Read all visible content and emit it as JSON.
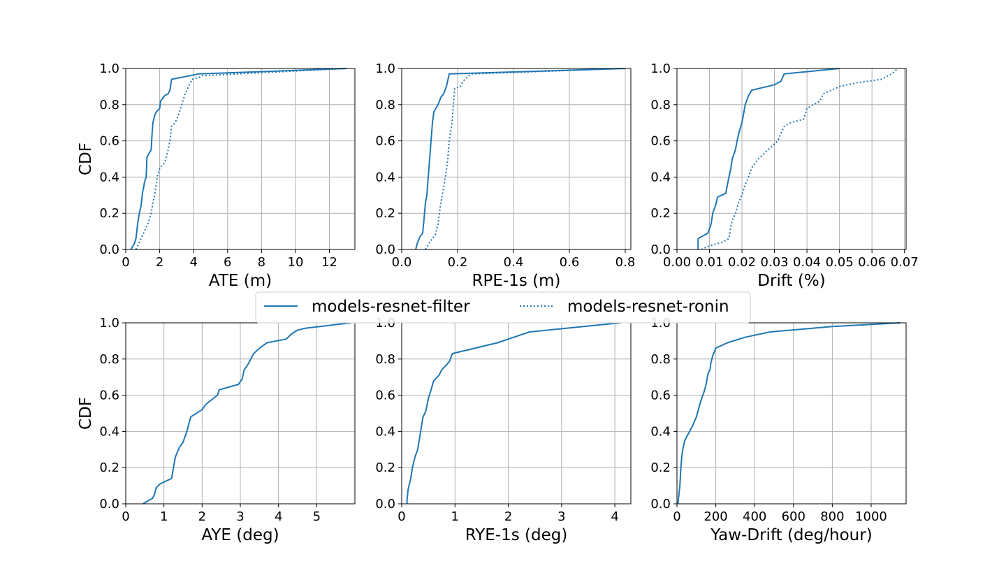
{
  "colors": {
    "series": "#1f77b4",
    "grid": "#b0b0b0"
  },
  "legend": {
    "placement": "center",
    "entries": [
      {
        "label": "models-resnet-filter",
        "style": "solid"
      },
      {
        "label": "models-resnet-ronin",
        "style": "dotted"
      }
    ]
  },
  "chart_data": [
    {
      "type": "line",
      "xlabel": "ATE (m)",
      "ylabel": "CDF",
      "xlim": [
        0,
        13.5
      ],
      "ylim": [
        0,
        1
      ],
      "xticks": [
        0,
        2,
        4,
        6,
        8,
        10,
        12
      ],
      "xtick_labels": [
        "0",
        "2",
        "4",
        "6",
        "8",
        "10",
        "12"
      ],
      "yticks": [
        0,
        0.2,
        0.4,
        0.6,
        0.8,
        1.0
      ],
      "ytick_labels": [
        "0.0",
        "0.2",
        "0.4",
        "0.6",
        "0.8",
        "1.0"
      ],
      "grid": true,
      "series": [
        {
          "name": "models-resnet-filter",
          "style": "solid",
          "x": [
            0.3,
            0.5,
            0.6,
            0.7,
            0.8,
            0.9,
            1.0,
            1.05,
            1.1,
            1.2,
            1.25,
            1.3,
            1.5,
            1.55,
            1.6,
            1.7,
            1.8,
            2.0,
            2.05,
            2.3,
            2.5,
            2.6,
            2.65,
            2.7,
            4.3,
            13.0
          ],
          "y": [
            0.0,
            0.03,
            0.06,
            0.14,
            0.2,
            0.24,
            0.32,
            0.34,
            0.37,
            0.4,
            0.51,
            0.52,
            0.55,
            0.64,
            0.7,
            0.74,
            0.76,
            0.78,
            0.82,
            0.85,
            0.86,
            0.88,
            0.91,
            0.94,
            0.97,
            1.0
          ]
        },
        {
          "name": "models-resnet-ronin",
          "style": "dotted",
          "x": [
            0.6,
            0.9,
            1.1,
            1.3,
            1.5,
            1.6,
            1.7,
            1.8,
            1.85,
            1.95,
            2.0,
            2.3,
            2.5,
            2.6,
            2.65,
            2.7,
            2.9,
            3.1,
            3.3,
            3.5,
            3.9,
            4.3,
            4.5,
            13.0
          ],
          "y": [
            0.0,
            0.06,
            0.1,
            0.14,
            0.2,
            0.26,
            0.3,
            0.36,
            0.4,
            0.43,
            0.45,
            0.48,
            0.55,
            0.6,
            0.64,
            0.68,
            0.7,
            0.74,
            0.8,
            0.86,
            0.94,
            0.95,
            0.96,
            1.0
          ]
        }
      ]
    },
    {
      "type": "line",
      "xlabel": "RPE-1s (m)",
      "ylabel": "",
      "xlim": [
        0,
        0.82
      ],
      "ylim": [
        0,
        1
      ],
      "xticks": [
        0,
        0.2,
        0.4,
        0.6,
        0.8
      ],
      "xtick_labels": [
        "0.0",
        "0.2",
        "0.4",
        "0.6",
        "0.8"
      ],
      "yticks": [
        0,
        0.2,
        0.4,
        0.6,
        0.8,
        1.0
      ],
      "ytick_labels": [
        "0.0",
        "0.2",
        "0.4",
        "0.6",
        "0.8",
        "1.0"
      ],
      "grid": true,
      "series": [
        {
          "name": "models-resnet-filter",
          "style": "solid",
          "x": [
            0.05,
            0.055,
            0.065,
            0.075,
            0.08,
            0.085,
            0.09,
            0.095,
            0.1,
            0.105,
            0.11,
            0.115,
            0.13,
            0.14,
            0.15,
            0.16,
            0.17,
            0.8
          ],
          "y": [
            0.0,
            0.03,
            0.07,
            0.09,
            0.17,
            0.26,
            0.3,
            0.4,
            0.5,
            0.6,
            0.7,
            0.76,
            0.8,
            0.84,
            0.86,
            0.9,
            0.97,
            1.0
          ]
        },
        {
          "name": "models-resnet-ronin",
          "style": "dotted",
          "x": [
            0.085,
            0.1,
            0.12,
            0.13,
            0.135,
            0.14,
            0.15,
            0.16,
            0.165,
            0.17,
            0.175,
            0.18,
            0.185,
            0.19,
            0.21,
            0.22,
            0.24,
            0.25,
            0.8
          ],
          "y": [
            0.0,
            0.04,
            0.08,
            0.14,
            0.2,
            0.26,
            0.34,
            0.44,
            0.5,
            0.6,
            0.65,
            0.7,
            0.8,
            0.89,
            0.9,
            0.93,
            0.96,
            0.97,
            1.0
          ]
        }
      ]
    },
    {
      "type": "line",
      "xlabel": "Drift (%)",
      "ylabel": "",
      "xlim": [
        0,
        0.0705
      ],
      "ylim": [
        0,
        1
      ],
      "xticks": [
        0,
        0.01,
        0.02,
        0.03,
        0.04,
        0.05,
        0.06,
        0.07
      ],
      "xtick_labels": [
        "0.00",
        "0.01",
        "0.02",
        "0.03",
        "0.04",
        "0.05",
        "0.06",
        "0.07"
      ],
      "yticks": [
        0,
        0.2,
        0.4,
        0.6,
        0.8,
        1.0
      ],
      "ytick_labels": [
        "0.0",
        "0.2",
        "0.4",
        "0.6",
        "0.8",
        "1.0"
      ],
      "grid": true,
      "series": [
        {
          "name": "models-resnet-filter",
          "style": "solid",
          "x": [
            0.0065,
            0.0065,
            0.0095,
            0.0105,
            0.011,
            0.012,
            0.0125,
            0.015,
            0.016,
            0.0165,
            0.017,
            0.018,
            0.0185,
            0.019,
            0.02,
            0.0205,
            0.021,
            0.022,
            0.023,
            0.03,
            0.032,
            0.033,
            0.05
          ],
          "y": [
            0.0,
            0.06,
            0.09,
            0.14,
            0.2,
            0.25,
            0.29,
            0.31,
            0.4,
            0.44,
            0.5,
            0.55,
            0.6,
            0.64,
            0.7,
            0.75,
            0.8,
            0.85,
            0.88,
            0.91,
            0.93,
            0.97,
            1.0
          ]
        },
        {
          "name": "models-resnet-ronin",
          "style": "dotted",
          "x": [
            0.0075,
            0.01,
            0.012,
            0.014,
            0.016,
            0.0165,
            0.017,
            0.018,
            0.019,
            0.02,
            0.021,
            0.022,
            0.023,
            0.025,
            0.028,
            0.031,
            0.032,
            0.033,
            0.035,
            0.039,
            0.04,
            0.042,
            0.044,
            0.045,
            0.05,
            0.055,
            0.063,
            0.066,
            0.068
          ],
          "y": [
            0.0,
            0.02,
            0.03,
            0.04,
            0.06,
            0.12,
            0.16,
            0.2,
            0.26,
            0.3,
            0.36,
            0.4,
            0.45,
            0.5,
            0.55,
            0.6,
            0.64,
            0.68,
            0.7,
            0.72,
            0.78,
            0.8,
            0.82,
            0.86,
            0.9,
            0.92,
            0.94,
            0.97,
            1.0
          ]
        }
      ]
    },
    {
      "type": "line",
      "xlabel": "AYE (deg)",
      "ylabel": "CDF",
      "xlim": [
        0,
        6.0
      ],
      "ylim": [
        0,
        1
      ],
      "xticks": [
        0,
        1,
        2,
        3,
        4,
        5
      ],
      "xtick_labels": [
        "0",
        "1",
        "2",
        "3",
        "4",
        "5"
      ],
      "yticks": [
        0,
        0.2,
        0.4,
        0.6,
        0.8,
        1.0
      ],
      "ytick_labels": [
        "0.0",
        "0.2",
        "0.4",
        "0.6",
        "0.8",
        "1.0"
      ],
      "grid": true,
      "series": [
        {
          "name": "models-resnet-filter",
          "style": "solid",
          "x": [
            0.45,
            0.7,
            0.75,
            0.8,
            0.9,
            1.2,
            1.25,
            1.3,
            1.4,
            1.5,
            1.55,
            1.6,
            1.7,
            1.85,
            2.0,
            2.1,
            2.4,
            2.45,
            2.95,
            3.05,
            3.1,
            3.2,
            3.35,
            3.5,
            3.7,
            4.2,
            4.35,
            4.5,
            4.7,
            5.9
          ],
          "y": [
            0.0,
            0.03,
            0.05,
            0.09,
            0.11,
            0.14,
            0.2,
            0.26,
            0.31,
            0.34,
            0.37,
            0.4,
            0.48,
            0.5,
            0.52,
            0.55,
            0.6,
            0.63,
            0.66,
            0.69,
            0.74,
            0.77,
            0.83,
            0.86,
            0.89,
            0.91,
            0.94,
            0.96,
            0.97,
            1.0
          ]
        }
      ]
    },
    {
      "type": "line",
      "xlabel": "RYE-1s (deg)",
      "ylabel": "",
      "xlim": [
        0,
        4.3
      ],
      "ylim": [
        0,
        1
      ],
      "xticks": [
        0,
        1,
        2,
        3,
        4
      ],
      "xtick_labels": [
        "0",
        "1",
        "2",
        "3",
        "4"
      ],
      "yticks": [
        0,
        0.2,
        0.4,
        0.6,
        0.8,
        1.0
      ],
      "ytick_labels": [
        "0.0",
        "0.2",
        "0.4",
        "0.6",
        "0.8",
        "1.0"
      ],
      "grid": true,
      "series": [
        {
          "name": "models-resnet-filter",
          "style": "solid",
          "x": [
            0.1,
            0.1,
            0.12,
            0.17,
            0.2,
            0.25,
            0.3,
            0.35,
            0.4,
            0.45,
            0.5,
            0.55,
            0.6,
            0.7,
            0.75,
            0.85,
            0.9,
            0.95,
            1.8,
            2.1,
            2.4,
            4.1
          ],
          "y": [
            0.0,
            0.02,
            0.08,
            0.14,
            0.2,
            0.26,
            0.3,
            0.39,
            0.48,
            0.51,
            0.58,
            0.63,
            0.68,
            0.71,
            0.74,
            0.77,
            0.79,
            0.83,
            0.89,
            0.92,
            0.95,
            1.0
          ]
        }
      ]
    },
    {
      "type": "line",
      "xlabel": "Yaw-Drift (deg/hour)",
      "ylabel": "",
      "xlim": [
        0,
        1180
      ],
      "ylim": [
        0,
        1
      ],
      "xticks": [
        0,
        200,
        400,
        600,
        800,
        1000
      ],
      "xtick_labels": [
        "0",
        "200",
        "400",
        "600",
        "800",
        "1000"
      ],
      "yticks": [
        0,
        0.2,
        0.4,
        0.6,
        0.8,
        1.0
      ],
      "ytick_labels": [
        "0.0",
        "0.2",
        "0.4",
        "0.6",
        "0.8",
        "1.0"
      ],
      "grid": true,
      "series": [
        {
          "name": "models-resnet-filter",
          "style": "solid",
          "x": [
            5,
            10,
            15,
            20,
            25,
            30,
            40,
            60,
            80,
            100,
            110,
            120,
            140,
            150,
            160,
            170,
            175,
            185,
            200,
            260,
            350,
            480,
            800,
            1150
          ],
          "y": [
            0.0,
            0.05,
            0.1,
            0.2,
            0.26,
            0.3,
            0.35,
            0.39,
            0.43,
            0.48,
            0.52,
            0.56,
            0.62,
            0.66,
            0.72,
            0.74,
            0.78,
            0.82,
            0.86,
            0.89,
            0.92,
            0.95,
            0.98,
            1.0
          ]
        }
      ]
    }
  ]
}
